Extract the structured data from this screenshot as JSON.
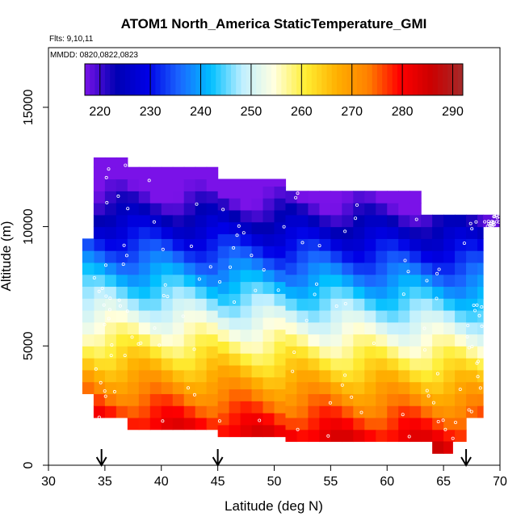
{
  "chart_data": {
    "type": "heatmap",
    "title": "ATOM1 North_America StaticTemperature_GMI",
    "flights_label": "Flts: 9,10,11",
    "dates_label": "MMDD: 0820,0822,0823",
    "xlabel": "Latitude (deg N)",
    "ylabel": "Altitude (m)",
    "xlim": [
      30,
      70
    ],
    "ylim": [
      0,
      17500
    ],
    "x_ticks": [
      "30",
      "35",
      "40",
      "45",
      "50",
      "55",
      "60",
      "65",
      "70"
    ],
    "y_ticks": [
      "0",
      "5000",
      "10000",
      "15000"
    ],
    "y_tick_values": [
      0,
      5000,
      10000,
      15000
    ],
    "x_tick_values": [
      30,
      35,
      40,
      45,
      50,
      55,
      60,
      65,
      70
    ],
    "colorbar": {
      "range": [
        217,
        292
      ],
      "ticks": [
        "220",
        "230",
        "240",
        "250",
        "260",
        "270",
        "280",
        "290"
      ],
      "tick_values": [
        220,
        230,
        240,
        250,
        260,
        270,
        280,
        290
      ],
      "colors": [
        "#7a12e8",
        "#0000b3",
        "#0000e6",
        "#1a66ff",
        "#00bfff",
        "#bfefff",
        "#ffffe0",
        "#ffee33",
        "#ffb000",
        "#ff8000",
        "#ff0000",
        "#cc0000",
        "#a52a2a"
      ]
    },
    "arrow_latitudes": [
      34.7,
      45.0,
      67.0
    ],
    "grid": false,
    "legend": "colorbar top",
    "regions": [
      {
        "lat": [
          34.0,
          37.0
        ],
        "alt": [
          2000,
          12900
        ]
      },
      {
        "lat": [
          37.0,
          45.0
        ],
        "alt": [
          1500,
          12500
        ]
      },
      {
        "lat": [
          45.0,
          51.0
        ],
        "alt": [
          1200,
          12000
        ]
      },
      {
        "lat": [
          51.0,
          63.0
        ],
        "alt": [
          1000,
          11500
        ]
      },
      {
        "lat": [
          63.0,
          67.0
        ],
        "alt": [
          1000,
          10500
        ]
      },
      {
        "lat": [
          67.0,
          68.5
        ],
        "alt": [
          2000,
          10500
        ]
      },
      {
        "lat": [
          68.5,
          70.0
        ],
        "alt": [
          10000,
          10500
        ]
      },
      {
        "lat": [
          33.0,
          34.0
        ],
        "alt": [
          3000,
          9500
        ]
      },
      {
        "lat": [
          64.0,
          65.8
        ],
        "alt": [
          500,
          1000
        ]
      }
    ]
  }
}
